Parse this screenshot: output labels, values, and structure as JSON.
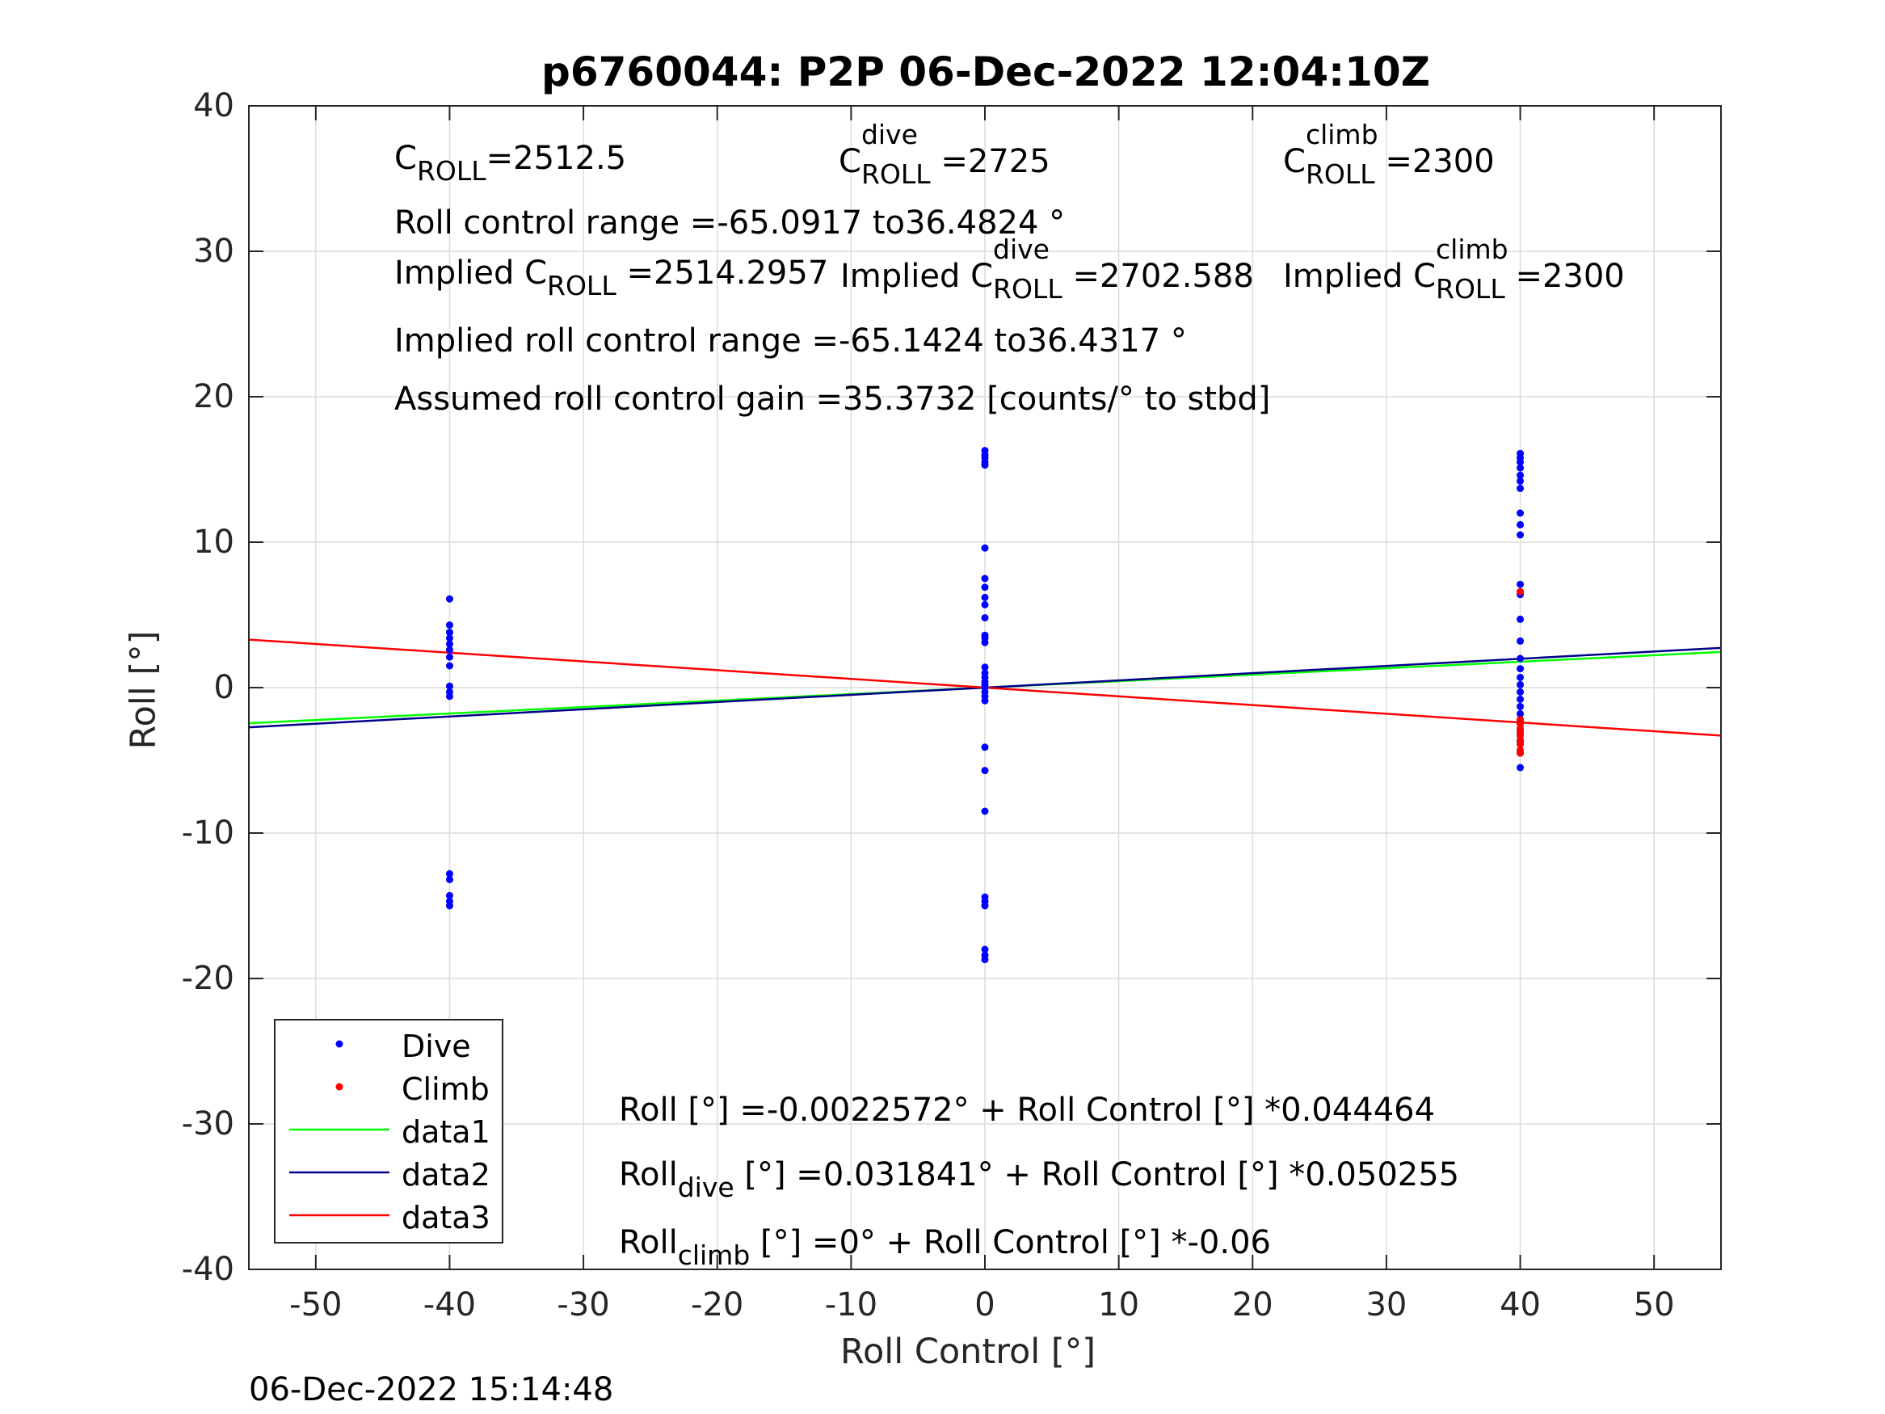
{
  "chart_data": {
    "type": "scatter",
    "title": "p6760044: P2P 06-Dec-2022 12:04:10Z",
    "xlabel": "Roll Control [°]",
    "ylabel": "Roll [°]",
    "xlim": [
      -55,
      55
    ],
    "ylim": [
      -40,
      40
    ],
    "xticks": [
      -50,
      -40,
      -30,
      -20,
      -10,
      0,
      10,
      20,
      30,
      40,
      50
    ],
    "yticks": [
      -40,
      -30,
      -20,
      -10,
      0,
      10,
      20,
      30,
      40
    ],
    "xtick_labels": [
      "-50",
      "-40",
      "-30",
      "-20",
      "-10",
      "0",
      "10",
      "20",
      "30",
      "40",
      "50"
    ],
    "ytick_labels": [
      "-40",
      "-30",
      "-20",
      "-10",
      "0",
      "10",
      "20",
      "30",
      "40"
    ],
    "grid": true,
    "legend_position": "bottom-left",
    "series": [
      {
        "name": "Dive",
        "kind": "points",
        "color": "#0000ff",
        "points": [
          [
            -40,
            6.1
          ],
          [
            -40,
            4.3
          ],
          [
            -40,
            3.8
          ],
          [
            -40,
            3.4
          ],
          [
            -40,
            3.0
          ],
          [
            -40,
            2.6
          ],
          [
            -40,
            2.1
          ],
          [
            -40,
            1.5
          ],
          [
            -40,
            0.1
          ],
          [
            -40,
            -0.3
          ],
          [
            -40,
            -0.6
          ],
          [
            -40,
            -12.8
          ],
          [
            -40,
            -13.2
          ],
          [
            -40,
            -14.3
          ],
          [
            -40,
            -14.7
          ],
          [
            -40,
            -15.0
          ],
          [
            0,
            16.3
          ],
          [
            0,
            16.0
          ],
          [
            0,
            15.8
          ],
          [
            0,
            15.5
          ],
          [
            0,
            15.3
          ],
          [
            0,
            9.6
          ],
          [
            0,
            7.5
          ],
          [
            0,
            6.9
          ],
          [
            0,
            6.2
          ],
          [
            0,
            5.7
          ],
          [
            0,
            4.8
          ],
          [
            0,
            3.6
          ],
          [
            0,
            3.4
          ],
          [
            0,
            3.1
          ],
          [
            0,
            1.4
          ],
          [
            0,
            1.0
          ],
          [
            0,
            0.7
          ],
          [
            0,
            0.4
          ],
          [
            0,
            0.2
          ],
          [
            0,
            0.0
          ],
          [
            0,
            -0.3
          ],
          [
            0,
            -0.6
          ],
          [
            0,
            -0.9
          ],
          [
            0,
            -4.1
          ],
          [
            0,
            -5.7
          ],
          [
            0,
            -8.5
          ],
          [
            0,
            -14.4
          ],
          [
            0,
            -14.7
          ],
          [
            0,
            -15.0
          ],
          [
            0,
            -18.0
          ],
          [
            0,
            -18.4
          ],
          [
            0,
            -18.7
          ],
          [
            40,
            16.1
          ],
          [
            40,
            15.8
          ],
          [
            40,
            15.5
          ],
          [
            40,
            15.1
          ],
          [
            40,
            14.6
          ],
          [
            40,
            14.2
          ],
          [
            40,
            13.7
          ],
          [
            40,
            12.0
          ],
          [
            40,
            11.2
          ],
          [
            40,
            10.5
          ],
          [
            40,
            7.1
          ],
          [
            40,
            6.4
          ],
          [
            40,
            4.7
          ],
          [
            40,
            3.2
          ],
          [
            40,
            2.0
          ],
          [
            40,
            1.3
          ],
          [
            40,
            0.7
          ],
          [
            40,
            0.2
          ],
          [
            40,
            -0.3
          ],
          [
            40,
            -0.8
          ],
          [
            40,
            -1.3
          ],
          [
            40,
            -1.8
          ],
          [
            40,
            -2.3
          ],
          [
            40,
            -3.0
          ],
          [
            40,
            -3.7
          ],
          [
            40,
            -4.5
          ],
          [
            40,
            -5.5
          ]
        ]
      },
      {
        "name": "Climb",
        "kind": "points",
        "color": "#ff0000",
        "points": [
          [
            40,
            6.6
          ],
          [
            40,
            -2.2
          ],
          [
            40,
            -2.5
          ],
          [
            40,
            -2.8
          ],
          [
            40,
            -3.1
          ],
          [
            40,
            -3.3
          ],
          [
            40,
            -3.6
          ],
          [
            40,
            -3.9
          ],
          [
            40,
            -4.3
          ],
          [
            40,
            -4.5
          ]
        ]
      },
      {
        "name": "data1",
        "kind": "line",
        "color": "#00ff00",
        "x": [
          -55,
          55
        ],
        "y": [
          -2.45,
          2.45
        ]
      },
      {
        "name": "data2",
        "kind": "line",
        "color": "#00008b",
        "x": [
          -55,
          55
        ],
        "y": [
          -2.73,
          2.73
        ]
      },
      {
        "name": "data3",
        "kind": "line",
        "color": "#ff0000",
        "x": [
          -55,
          55
        ],
        "y": [
          3.3,
          -3.3
        ]
      }
    ],
    "annotations": {
      "c_roll": "=2512.5",
      "c_roll_dive": "=2725",
      "c_roll_climb": "=2300",
      "roll_control_range": "Roll control range =-65.0917 to36.4824 °",
      "implied_c_roll": "=2514.2957",
      "implied_c_roll_dive": "=2702.588",
      "implied_c_roll_climb": "=2300",
      "implied_roll_control_range": "Implied roll control range =-65.1424 to36.4317 °",
      "assumed_gain": "Assumed roll control gain =35.3732 [counts/° to stbd]",
      "fit_all": "Roll [°] =-0.0022572° + Roll Control [°] *0.044464",
      "fit_dive_rest": " [°] =0.031841° + Roll Control [°] *0.050255",
      "fit_climb_rest": " [°] =0° + Roll Control [°] *-0.06"
    },
    "symbols": {
      "c": "C",
      "roll_sub": "ROLL",
      "dive_sup": "dive",
      "climb_sup": "climb",
      "implied_prefix": "Implied C",
      "roll_word": "Roll",
      "dive_sub": "dive",
      "climb_sub": "climb"
    }
  },
  "timestamp": "06-Dec-2022 15:14:48"
}
